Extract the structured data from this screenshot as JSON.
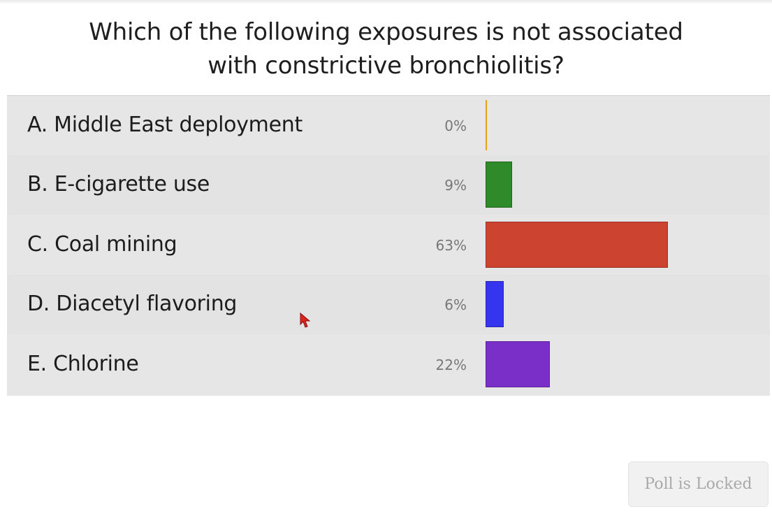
{
  "poll": {
    "question_line1": "Which of the following exposures is not associated",
    "question_line2": "with constrictive bronchiolitis?",
    "options": [
      {
        "label": "A. Middle East deployment",
        "percent_label": "0%",
        "value": 0,
        "color": "#e8a317"
      },
      {
        "label": "B. E-cigarette use",
        "percent_label": "9%",
        "value": 9,
        "color": "#2f8a2a"
      },
      {
        "label": "C. Coal mining",
        "percent_label": "63%",
        "value": 63,
        "color": "#cc4430"
      },
      {
        "label": "D. Diacetyl flavoring",
        "percent_label": "6%",
        "value": 6,
        "color": "#3535f0"
      },
      {
        "label": "E. Chlorine",
        "percent_label": "22%",
        "value": 22,
        "color": "#7a2fc8"
      }
    ],
    "status_button": "Poll is Locked"
  },
  "cursor": {
    "icon": "mouse-pointer-icon",
    "color": "#d9261c"
  }
}
